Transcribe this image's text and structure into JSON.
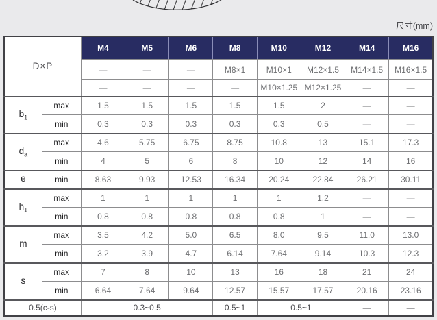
{
  "page": {
    "unit_label": "尺寸(mm)",
    "colors": {
      "header_bg": "#282c62",
      "page_bg": "#eaeaec",
      "grid": "#8d8d8f",
      "header_text": "#ffffff"
    }
  },
  "drawing": {
    "description": "bottom-arc-of-sectioned-nut-with-hatching"
  },
  "table": {
    "corner_label": "D×P",
    "columns": [
      "M4",
      "M5",
      "M6",
      "M8",
      "M10",
      "M12",
      "M14",
      "M16"
    ],
    "dxp_rows": [
      [
        "—",
        "—",
        "—",
        "M8×1",
        "M10×1",
        "M12×1.5",
        "M14×1.5",
        "M16×1.5"
      ],
      [
        "—",
        "—",
        "—",
        "—",
        "M10×1.25",
        "M12×1.25",
        "—",
        "—"
      ]
    ],
    "groups": [
      {
        "label": "b",
        "sub": "1",
        "rows": [
          {
            "limit": "max",
            "values": [
              "1.5",
              "1.5",
              "1.5",
              "1.5",
              "1.5",
              "2",
              "—",
              "—"
            ]
          },
          {
            "limit": "min",
            "values": [
              "0.3",
              "0.3",
              "0.3",
              "0.3",
              "0.3",
              "0.5",
              "—",
              "—"
            ]
          }
        ]
      },
      {
        "label": "d",
        "sub": "a",
        "rows": [
          {
            "limit": "max",
            "values": [
              "4.6",
              "5.75",
              "6.75",
              "8.75",
              "10.8",
              "13",
              "15.1",
              "17.3"
            ]
          },
          {
            "limit": "min",
            "values": [
              "4",
              "5",
              "6",
              "8",
              "10",
              "12",
              "14",
              "16"
            ]
          }
        ]
      },
      {
        "label": "e",
        "sub": "",
        "rows": [
          {
            "limit": "min",
            "values": [
              "8.63",
              "9.93",
              "12.53",
              "16.34",
              "20.24",
              "22.84",
              "26.21",
              "30.11"
            ]
          }
        ]
      },
      {
        "label": "h",
        "sub": "1",
        "rows": [
          {
            "limit": "max",
            "values": [
              "1",
              "1",
              "1",
              "1",
              "1",
              "1.2",
              "—",
              "—"
            ]
          },
          {
            "limit": "min",
            "values": [
              "0.8",
              "0.8",
              "0.8",
              "0.8",
              "0.8",
              "1",
              "—",
              "—"
            ]
          }
        ]
      },
      {
        "label": "m",
        "sub": "",
        "rows": [
          {
            "limit": "max",
            "values": [
              "3.5",
              "4.2",
              "5.0",
              "6.5",
              "8.0",
              "9.5",
              "11.0",
              "13.0"
            ]
          },
          {
            "limit": "min",
            "values": [
              "3.2",
              "3.9",
              "4.7",
              "6.14",
              "7.64",
              "9.14",
              "10.3",
              "12.3"
            ]
          }
        ]
      },
      {
        "label": "s",
        "sub": "",
        "rows": [
          {
            "limit": "max",
            "values": [
              "7",
              "8",
              "10",
              "13",
              "16",
              "18",
              "21",
              "24"
            ]
          },
          {
            "limit": "min",
            "values": [
              "6.64",
              "7.64",
              "9.64",
              "12.57",
              "15.57",
              "17.57",
              "20.16",
              "23.16"
            ]
          }
        ]
      }
    ],
    "footer": {
      "label": "0.5(c-s)",
      "cells": [
        {
          "text": "0.3~0.5",
          "span": 3
        },
        {
          "text": "0.5~1",
          "span": 1
        },
        {
          "text": "0.5~1",
          "span": 2
        },
        {
          "text": "—",
          "span": 1
        },
        {
          "text": "—",
          "span": 1
        }
      ]
    }
  }
}
